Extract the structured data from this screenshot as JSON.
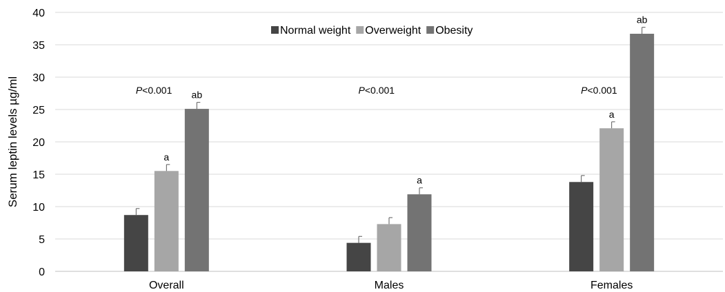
{
  "chart_data": {
    "type": "bar",
    "ylabel": "Serum leptin levels µg/ml",
    "ylim": [
      0,
      40
    ],
    "yticks": [
      0,
      5,
      10,
      15,
      20,
      25,
      30,
      35,
      40
    ],
    "grid": true,
    "legend_position": "top-center",
    "categories": [
      "Overall",
      "Males",
      "Females"
    ],
    "series": [
      {
        "name": "Normal weight",
        "color": "#454545",
        "values": [
          8.7,
          4.4,
          13.8
        ],
        "errors": [
          1.0,
          1.0,
          1.0
        ]
      },
      {
        "name": "Overweight",
        "color": "#a6a6a6",
        "values": [
          15.5,
          7.3,
          22.1
        ],
        "errors": [
          1.0,
          1.0,
          1.0
        ]
      },
      {
        "name": "Obesity",
        "color": "#737373",
        "values": [
          25.1,
          11.9,
          36.7
        ],
        "errors": [
          1.0,
          1.0,
          1.0
        ]
      }
    ],
    "group_annotations": [
      {
        "prefix": "P",
        "text": "<0.001",
        "y": 28
      },
      {
        "prefix": "P",
        "text": "<0.001",
        "y": 28
      },
      {
        "prefix": "P",
        "text": "<0.001",
        "y": 28
      }
    ],
    "bar_labels": [
      [
        "",
        "a",
        "ab"
      ],
      [
        "",
        "",
        "a"
      ],
      [
        "",
        "a",
        "ab"
      ]
    ]
  }
}
